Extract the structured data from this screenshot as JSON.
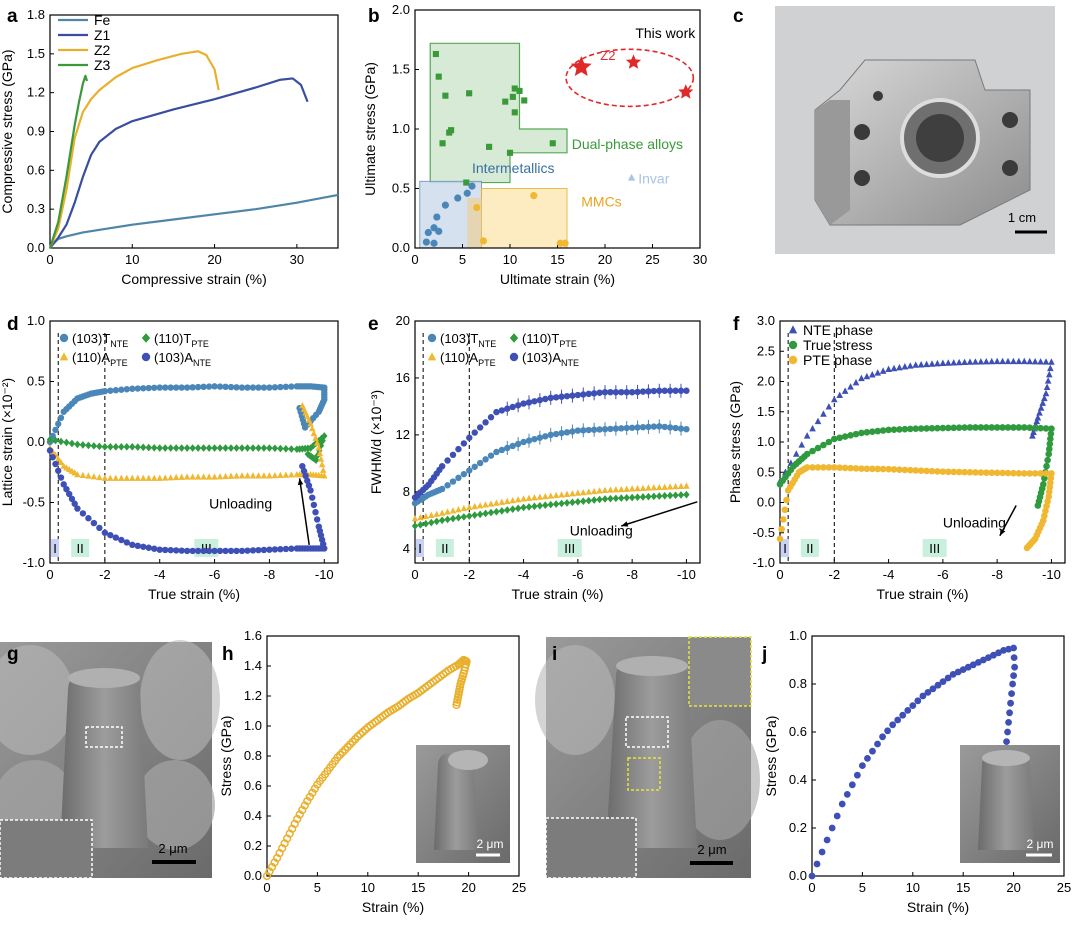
{
  "colors": {
    "fe": "#4f86a8",
    "z1": "#3a4ea0",
    "z2": "#e8b02e",
    "z3": "#3a9a3a",
    "tnte": "#4a87b8",
    "tpte": "#2f9a3e",
    "apte": "#f0b731",
    "anteBlue": "#3e4fb5",
    "nte": "#3e4fb5",
    "true_stress": "#2f9a3e",
    "pte": "#f0b731",
    "red": "#e02a2a",
    "green_box_fill": "#cfe7cf",
    "green_box_stroke": "#3a9a3a",
    "blue_box_fill": "#cfdcee",
    "orange_box_fill": "#fde9b8",
    "invar": "#a9c3e6",
    "region_I": "#c8d2f5",
    "region_II_III": "#c8f0dc"
  },
  "panels": {
    "a": "a",
    "b": "b",
    "c": "c",
    "d": "d",
    "e": "e",
    "f": "f",
    "g": "g",
    "h": "h",
    "i": "i",
    "j": "j"
  },
  "annotations": {
    "this_work": "This work",
    "z2": "Z2",
    "dual_phase": "Dual-phase alloys",
    "intermetallics": "Intermetallics",
    "invar": "Invar",
    "mmcs": "MMCs",
    "unloading": "Unloading",
    "region_I": "I",
    "region_II": "II",
    "region_III": "III",
    "scale_1cm": "1 cm",
    "scale_2um": "2 μm"
  },
  "chart_data": [
    {
      "panel": "a",
      "type": "line",
      "xlabel": "Compressive strain (%)",
      "ylabel": "Compressive stress (GPa)",
      "xlim": [
        0,
        35
      ],
      "ylim": [
        0,
        1.8
      ],
      "xticks": [
        "0",
        "10",
        "20",
        "30"
      ],
      "yticks": [
        "0.0",
        "0.3",
        "0.6",
        "0.9",
        "1.2",
        "1.5",
        "1.8"
      ],
      "series": [
        {
          "name": "Fe",
          "x": [
            0,
            0.5,
            1,
            2,
            4,
            7,
            10,
            15,
            20,
            25,
            30,
            35
          ],
          "y": [
            0,
            0.04,
            0.07,
            0.09,
            0.12,
            0.15,
            0.18,
            0.22,
            0.26,
            0.3,
            0.35,
            0.41
          ]
        },
        {
          "name": "Z1",
          "x": [
            0,
            1,
            2,
            3,
            4,
            5,
            6,
            8,
            10,
            15,
            20,
            25,
            28,
            29.5,
            30.5,
            31.3
          ],
          "y": [
            0,
            0.08,
            0.18,
            0.35,
            0.55,
            0.72,
            0.82,
            0.92,
            0.98,
            1.07,
            1.15,
            1.24,
            1.3,
            1.31,
            1.26,
            1.13
          ]
        },
        {
          "name": "Z2",
          "x": [
            0,
            1,
            2,
            3,
            4,
            5,
            6,
            8,
            10,
            13,
            16,
            18,
            19,
            20,
            20.5
          ],
          "y": [
            0,
            0.15,
            0.45,
            0.85,
            1.05,
            1.15,
            1.22,
            1.32,
            1.39,
            1.45,
            1.5,
            1.52,
            1.49,
            1.38,
            1.22
          ]
        },
        {
          "name": "Z3",
          "x": [
            0,
            1,
            2,
            3,
            3.5,
            4,
            4.3,
            4.5
          ],
          "y": [
            0,
            0.2,
            0.55,
            0.95,
            1.12,
            1.27,
            1.33,
            1.29
          ]
        }
      ]
    },
    {
      "panel": "b",
      "type": "scatter",
      "xlabel": "Ultimate strain (%)",
      "ylabel": "Ultimate stress (GPa)",
      "xlim": [
        0,
        30
      ],
      "ylim": [
        0,
        2.0
      ],
      "xticks": [
        "0",
        "5",
        "10",
        "15",
        "20",
        "25",
        "30"
      ],
      "yticks": [
        "0.0",
        "0.5",
        "1.0",
        "1.5",
        "2.0"
      ],
      "series": [
        {
          "name": "Dual-phase alloys",
          "x": [
            2.2,
            2.5,
            3.2,
            3.6,
            3.8,
            2.9,
            5.7,
            7.8,
            9.5,
            10.5,
            10.3,
            11,
            11.5,
            10.5,
            14.5,
            10,
            5.4
          ],
          "y": [
            1.63,
            1.44,
            1.28,
            0.97,
            0.99,
            0.88,
            1.3,
            0.85,
            1.23,
            1.34,
            1.27,
            1.32,
            1.24,
            1.14,
            0.88,
            0.8,
            0.55
          ]
        },
        {
          "name": "Intermetallics",
          "x": [
            1.2,
            1.4,
            2.0,
            2.0,
            2.3,
            2.5,
            3.2,
            4.5,
            5.5,
            6.0
          ],
          "y": [
            0.05,
            0.13,
            0.04,
            0.17,
            0.26,
            0.14,
            0.36,
            0.42,
            0.46,
            0.52
          ]
        },
        {
          "name": "MMCs",
          "x": [
            6.5,
            7.2,
            12.5,
            15.3,
            15.8
          ],
          "y": [
            0.34,
            0.06,
            0.44,
            0.04,
            0.04
          ]
        },
        {
          "name": "Invar",
          "x": [
            22.8
          ],
          "y": [
            0.59
          ]
        },
        {
          "name": "This work",
          "x": [
            17.5,
            23,
            28.5
          ],
          "y": [
            1.52,
            1.56,
            1.31
          ]
        }
      ]
    },
    {
      "panel": "d",
      "type": "scatter",
      "xlabel": "True strain (%)",
      "ylabel": "Lattice strain (×10⁻²)",
      "xlim": [
        0,
        -10.5
      ],
      "ylim": [
        -1.0,
        1.0
      ],
      "xticks": [
        "0",
        "-2",
        "-4",
        "-6",
        "-8",
        "-10"
      ],
      "yticks": [
        "-1.0",
        "-0.5",
        "0.0",
        "0.5",
        "1.0"
      ],
      "legend": [
        "(103)T",
        "(110)T",
        "(110)A",
        "(103)A"
      ],
      "legend_subscripts": [
        "NTE",
        "PTE",
        "PTE",
        "NTE"
      ],
      "series": [
        {
          "name": "(103)T NTE",
          "x": [
            0,
            -0.5,
            -1,
            -1.5,
            -2,
            -3,
            -4,
            -5,
            -6,
            -7,
            -8,
            -9,
            -9.5,
            -10,
            -10,
            -9.8,
            -9.3,
            -9.1
          ],
          "y": [
            0,
            0.25,
            0.36,
            0.4,
            0.42,
            0.44,
            0.45,
            0.45,
            0.46,
            0.45,
            0.45,
            0.46,
            0.46,
            0.45,
            0.35,
            0.25,
            0.12,
            0.28
          ]
        },
        {
          "name": "(110)T PTE",
          "x": [
            0,
            -1,
            -2,
            -3,
            -4,
            -5,
            -6,
            -7,
            -8,
            -9,
            -9.5,
            -10,
            -9.7,
            -9.4
          ],
          "y": [
            0.02,
            -0.02,
            -0.04,
            -0.04,
            -0.05,
            -0.05,
            -0.05,
            -0.05,
            -0.05,
            -0.06,
            -0.05,
            0.05,
            -0.15,
            -0.1
          ]
        },
        {
          "name": "(110)A PTE",
          "x": [
            0,
            -0.5,
            -1,
            -2,
            -3,
            -4,
            -5,
            -6,
            -7,
            -8,
            -9,
            -9.5,
            -10,
            -9.8,
            -9.5,
            -9.2
          ],
          "y": [
            -0.05,
            -0.2,
            -0.27,
            -0.3,
            -0.3,
            -0.3,
            -0.29,
            -0.29,
            -0.28,
            -0.28,
            -0.27,
            -0.27,
            -0.28,
            -0.05,
            0.15,
            0.3
          ]
        },
        {
          "name": "(103)A NTE",
          "x": [
            0,
            -0.5,
            -1,
            -2,
            -3,
            -4,
            -5,
            -6,
            -7,
            -8,
            -9,
            -9.5,
            -10,
            -9.8,
            -9.5,
            -9.2
          ],
          "y": [
            -0.07,
            -0.35,
            -0.55,
            -0.75,
            -0.85,
            -0.89,
            -0.9,
            -0.9,
            -0.9,
            -0.89,
            -0.88,
            -0.88,
            -0.88,
            -0.7,
            -0.4,
            -0.2
          ]
        }
      ]
    },
    {
      "panel": "e",
      "type": "scatter",
      "xlabel": "True strain (%)",
      "ylabel": "FWHM/d (×10⁻³)",
      "xlim": [
        0,
        -10.5
      ],
      "ylim": [
        3,
        20
      ],
      "xticks": [
        "0",
        "-2",
        "-4",
        "-6",
        "-8",
        "-10"
      ],
      "yticks": [
        "4",
        "8",
        "12",
        "16",
        "20"
      ],
      "legend": [
        "(103)T",
        "(110)T",
        "(110)A",
        "(103)A"
      ],
      "legend_subscripts": [
        "NTE",
        "PTE",
        "PTE",
        "NTE"
      ],
      "series": [
        {
          "name": "(103)T NTE",
          "x": [
            0,
            -0.5,
            -1,
            -2,
            -3,
            -4,
            -5,
            -6,
            -7,
            -8,
            -9,
            -10
          ],
          "y": [
            7.2,
            7.8,
            8.2,
            9.5,
            10.8,
            11.5,
            12,
            12.3,
            12.4,
            12.5,
            12.6,
            12.4
          ]
        },
        {
          "name": "(110)T PTE",
          "x": [
            0,
            -1,
            -2,
            -3,
            -4,
            -5,
            -6,
            -7,
            -8,
            -9,
            -10
          ],
          "y": [
            5.6,
            6,
            6.3,
            6.6,
            6.9,
            7.1,
            7.3,
            7.5,
            7.6,
            7.7,
            7.8
          ]
        },
        {
          "name": "(110)A PTE",
          "x": [
            0,
            -1,
            -2,
            -3,
            -4,
            -5,
            -6,
            -7,
            -8,
            -9,
            -10
          ],
          "y": [
            6.1,
            6.5,
            6.9,
            7.2,
            7.5,
            7.7,
            7.9,
            8.1,
            8.2,
            8.3,
            8.4
          ]
        },
        {
          "name": "(103)A NTE",
          "x": [
            0,
            -0.5,
            -1,
            -2,
            -3,
            -4,
            -5,
            -6,
            -7,
            -8,
            -9,
            -10
          ],
          "y": [
            7.6,
            8.5,
            9.8,
            11.8,
            13.6,
            14.2,
            14.6,
            14.8,
            15,
            15,
            15.1,
            15.1
          ]
        }
      ]
    },
    {
      "panel": "f",
      "type": "scatter",
      "xlabel": "True strain (%)",
      "ylabel": "Phase stress (GPa)",
      "xlim": [
        0,
        -10.5
      ],
      "ylim": [
        -1.0,
        3.0
      ],
      "xticks": [
        "0",
        "-2",
        "-4",
        "-6",
        "-8",
        "-10"
      ],
      "yticks": [
        "-1.0",
        "-0.5",
        "0.0",
        "0.5",
        "1.0",
        "1.5",
        "2.0",
        "2.5",
        "3.0"
      ],
      "legend": [
        "NTE phase",
        "True stress",
        "PTE phase"
      ],
      "series": [
        {
          "name": "NTE phase",
          "x": [
            0,
            -1,
            -2,
            -3,
            -4,
            -5,
            -6,
            -7,
            -8,
            -9,
            -10,
            -9.8,
            -9.5,
            -9.3
          ],
          "y": [
            0.35,
            1.1,
            1.7,
            2.05,
            2.2,
            2.27,
            2.3,
            2.32,
            2.33,
            2.33,
            2.32,
            1.8,
            1.4,
            1.1
          ]
        },
        {
          "name": "True stress",
          "x": [
            0,
            -0.5,
            -1,
            -2,
            -3,
            -4,
            -5,
            -6,
            -7,
            -8,
            -9,
            -10,
            -9.9,
            -9.7,
            -9.5
          ],
          "y": [
            0.3,
            0.6,
            0.8,
            1.05,
            1.15,
            1.2,
            1.22,
            1.23,
            1.24,
            1.24,
            1.24,
            1.22,
            0.8,
            0.3,
            -0.05
          ]
        },
        {
          "name": "PTE phase",
          "x": [
            0,
            -0.3,
            -0.7,
            -1,
            -2,
            -3,
            -4,
            -5,
            -6,
            -7,
            -8,
            -9,
            -10,
            -9.9,
            -9.7,
            -9.4,
            -9.1
          ],
          "y": [
            -0.6,
            0.2,
            0.5,
            0.58,
            0.58,
            0.56,
            0.55,
            0.53,
            0.51,
            0.5,
            0.49,
            0.48,
            0.48,
            0.1,
            -0.3,
            -0.6,
            -0.75
          ]
        }
      ]
    },
    {
      "panel": "h",
      "type": "scatter",
      "xlabel": "Strain (%)",
      "ylabel": "Stress (GPa)",
      "xlim": [
        0,
        25
      ],
      "ylim": [
        0,
        1.6
      ],
      "xticks": [
        "0",
        "5",
        "10",
        "15",
        "20",
        "25"
      ],
      "yticks": [
        "0.0",
        "0.2",
        "0.4",
        "0.6",
        "0.8",
        "1.0",
        "1.2",
        "1.4",
        "1.6"
      ],
      "series": [
        {
          "name": "",
          "x": [
            0,
            1,
            2,
            3,
            4,
            5,
            6,
            7,
            8,
            9,
            10,
            11,
            12,
            13,
            14,
            15,
            16,
            17,
            18,
            19,
            19.5,
            19.8,
            19.5,
            19.2,
            19,
            18.8
          ],
          "y": [
            0,
            0.12,
            0.25,
            0.38,
            0.5,
            0.61,
            0.7,
            0.79,
            0.86,
            0.93,
            0.99,
            1.04,
            1.09,
            1.13,
            1.18,
            1.22,
            1.27,
            1.32,
            1.37,
            1.41,
            1.44,
            1.43,
            1.35,
            1.28,
            1.21,
            1.14
          ]
        }
      ]
    },
    {
      "panel": "j",
      "type": "scatter",
      "xlabel": "Strain (%)",
      "ylabel": "Stress (GPa)",
      "xlim": [
        0,
        25
      ],
      "ylim": [
        0,
        1.0
      ],
      "xticks": [
        "0",
        "5",
        "10",
        "15",
        "20",
        "25"
      ],
      "yticks": [
        "0.0",
        "0.2",
        "0.4",
        "0.6",
        "0.8",
        "1.0"
      ],
      "series": [
        {
          "name": "",
          "x": [
            0,
            1,
            2,
            3,
            4,
            5,
            6,
            7,
            8,
            9,
            10,
            11,
            12,
            13,
            14,
            15,
            16,
            17,
            18,
            19,
            20,
            20.1,
            19.9,
            19.7,
            19.5,
            19.3
          ],
          "y": [
            0,
            0.1,
            0.2,
            0.3,
            0.38,
            0.46,
            0.52,
            0.58,
            0.63,
            0.67,
            0.71,
            0.75,
            0.78,
            0.81,
            0.84,
            0.86,
            0.88,
            0.9,
            0.92,
            0.94,
            0.95,
            0.87,
            0.8,
            0.72,
            0.64,
            0.56
          ]
        }
      ]
    }
  ]
}
